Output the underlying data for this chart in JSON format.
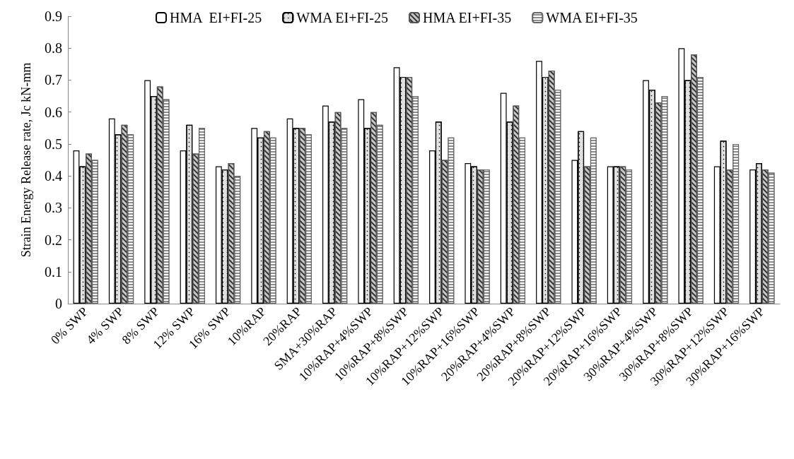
{
  "chart_data": {
    "type": "bar",
    "ylabel": "Strain Energy Release rate, Jc kN-mm",
    "categories": [
      "0% SWP",
      "4% SWP",
      "8% SWP",
      "12% SWP",
      "16% SWP",
      "10%RAP",
      "20%RAP",
      "SMA+30%RAP",
      "10%RAP+4%SWP",
      "10%RAP+8%SWP",
      "10%RAP+12%SWP",
      "10%RAP+16%SWP",
      "20%RAP+4%SWP",
      "20%RAP+8%SWP",
      "20%RAP+12%SWP",
      "20%RAP+16%SWP",
      "30%RAP+4%SWP",
      "30%RAP+8%SWP",
      "30%RAP+12%SWP",
      "30%RAP+16%SWP"
    ],
    "series": [
      {
        "name": "HMA  EI+FI-25",
        "color": "#ffffff",
        "values": [
          0.48,
          0.58,
          0.7,
          0.48,
          0.43,
          0.55,
          0.58,
          0.62,
          0.64,
          0.74,
          0.48,
          0.44,
          0.66,
          0.76,
          0.45,
          0.43,
          0.7,
          0.8,
          0.43,
          0.42
        ]
      },
      {
        "name": "WMA EI+FI-25",
        "color": "#e0e0e0",
        "values": [
          0.43,
          0.53,
          0.65,
          0.56,
          0.42,
          0.52,
          0.55,
          0.57,
          0.55,
          0.71,
          0.57,
          0.43,
          0.57,
          0.71,
          0.54,
          0.43,
          0.67,
          0.7,
          0.51,
          0.44
        ]
      },
      {
        "name": "HMA EI+FI-35",
        "color": "#c8c8c8",
        "values": [
          0.47,
          0.56,
          0.68,
          0.47,
          0.44,
          0.54,
          0.55,
          0.6,
          0.6,
          0.71,
          0.45,
          0.42,
          0.62,
          0.73,
          0.43,
          0.43,
          0.63,
          0.78,
          0.42,
          0.42
        ]
      },
      {
        "name": "WMA EI+FI-35",
        "color": "#8c8c8c",
        "values": [
          0.45,
          0.53,
          0.64,
          0.55,
          0.4,
          0.52,
          0.53,
          0.55,
          0.56,
          0.65,
          0.52,
          0.42,
          0.52,
          0.67,
          0.52,
          0.42,
          0.65,
          0.71,
          0.5,
          0.41
        ]
      }
    ],
    "ylim": [
      0,
      0.9
    ],
    "yticks": [
      0,
      0.1,
      0.2,
      0.3,
      0.4,
      0.5,
      0.6,
      0.7,
      0.8,
      0.9
    ],
    "legend": "top"
  }
}
